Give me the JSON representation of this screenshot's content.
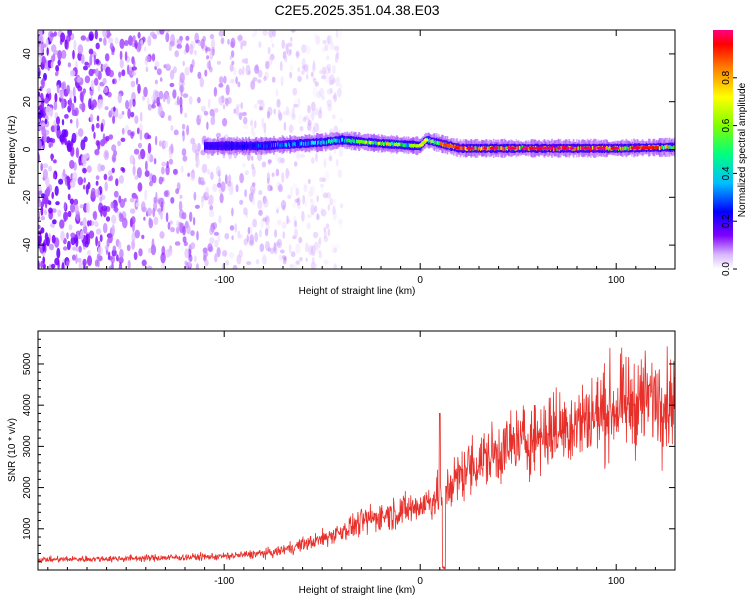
{
  "title": "C2E5.2025.351.04.38.E03",
  "chart_data": [
    {
      "type": "heatmap",
      "title": "C2E5.2025.351.04.38.E03",
      "xlabel": "Height of straight line (km)",
      "ylabel": "Frequency (Hz)",
      "xlim": [
        -195,
        130
      ],
      "ylim": [
        -50,
        50
      ],
      "x_ticks": [
        -100,
        0,
        100
      ],
      "x_tick_labels": [
        "-100",
        "0",
        "100"
      ],
      "y_ticks": [
        -40,
        -20,
        0,
        20,
        40
      ],
      "y_tick_labels": [
        "-40",
        "-20",
        "0",
        "20",
        "40"
      ],
      "colorbar": {
        "label": "Normalized spectral amplitude",
        "range": [
          0,
          1
        ],
        "ticks": [
          0.0,
          0.2,
          0.4,
          0.6,
          0.8
        ],
        "tick_labels": [
          "0.0",
          "0.2",
          "0.4",
          "0.6",
          "0.8"
        ],
        "colors": [
          "#ffffff",
          "#8000ff",
          "#0000ff",
          "#00ffff",
          "#00ff00",
          "#ffff00",
          "#ff8000",
          "#ff0000",
          "#ff0080"
        ]
      },
      "noise_region_km": [
        -195,
        -55
      ],
      "noise_amplitude": 0.1,
      "signal_band": [
        {
          "x": -110,
          "f": 1.5,
          "amp": 0.15
        },
        {
          "x": -80,
          "f": 1.5,
          "amp": 0.3
        },
        {
          "x": -50,
          "f": 3,
          "amp": 0.4
        },
        {
          "x": -40,
          "f": 4,
          "amp": 0.45
        },
        {
          "x": -20,
          "f": 2.5,
          "amp": 0.55
        },
        {
          "x": 0,
          "f": 1.5,
          "amp": 0.55
        },
        {
          "x": 3,
          "f": 4,
          "amp": 0.5
        },
        {
          "x": 20,
          "f": 0.5,
          "amp": 0.85
        },
        {
          "x": 60,
          "f": 0.5,
          "amp": 0.9
        },
        {
          "x": 100,
          "f": 0.5,
          "amp": 0.85
        },
        {
          "x": 130,
          "f": 1,
          "amp": 0.7
        }
      ]
    },
    {
      "type": "line",
      "xlabel": "Height of straight line (km)",
      "ylabel": "SNR (10 * v/v)",
      "xlim": [
        -195,
        130
      ],
      "ylim": [
        0,
        5800
      ],
      "x_ticks": [
        -100,
        0,
        100
      ],
      "x_tick_labels": [
        "-100",
        "0",
        "100"
      ],
      "y_ticks": [
        1000,
        2000,
        3000,
        4000,
        5000
      ],
      "y_tick_labels": [
        "1000",
        "2000",
        "3000",
        "4000",
        "5000"
      ],
      "series": [
        {
          "name": "SNR",
          "color": "#e8302b",
          "trend_x": [
            -195,
            -150,
            -100,
            -75,
            -50,
            -25,
            0,
            10,
            25,
            50,
            75,
            100,
            120,
            130
          ],
          "trend_y": [
            250,
            280,
            330,
            420,
            750,
            1250,
            1550,
            1800,
            2500,
            3100,
            3500,
            3950,
            4200,
            4100
          ],
          "spike": {
            "x": 10,
            "y": 3800
          },
          "dip": {
            "x": 12,
            "y": 0
          }
        }
      ]
    }
  ]
}
